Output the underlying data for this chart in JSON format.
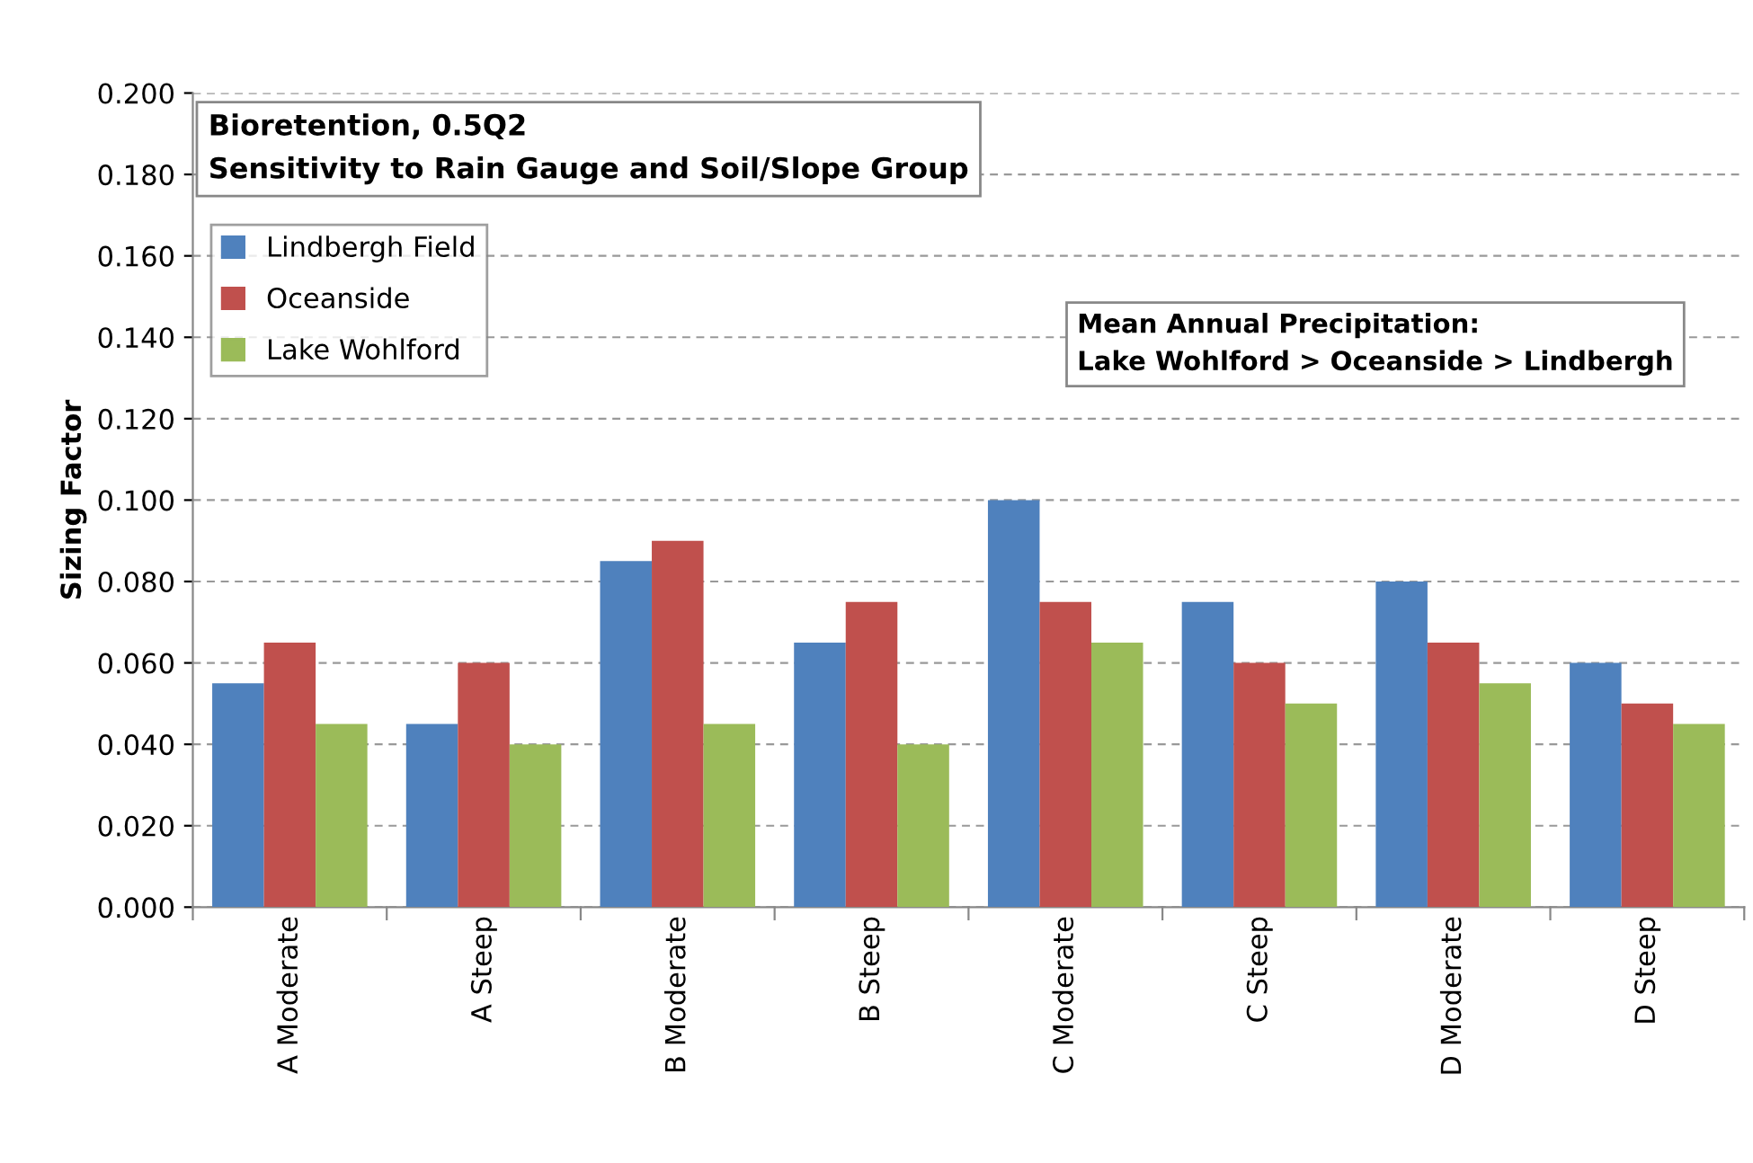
{
  "chart_data": {
    "type": "bar",
    "title": "Bioretention, 0.5Q2",
    "subtitle": "Sensitivity to Rain Gauge and Soil/Slope Group",
    "ylabel": "Sizing Factor",
    "categories": [
      "A Moderate",
      "A Steep",
      "B Moderate",
      "B Steep",
      "C Moderate",
      "C Steep",
      "D Moderate",
      "D Steep"
    ],
    "series": [
      {
        "name": "Lindbergh Field",
        "color": "#4f81bd",
        "values": [
          0.055,
          0.045,
          0.085,
          0.065,
          0.1,
          0.075,
          0.08,
          0.06
        ]
      },
      {
        "name": "Oceanside",
        "color": "#c0504d",
        "values": [
          0.065,
          0.06,
          0.09,
          0.075,
          0.075,
          0.06,
          0.065,
          0.05
        ]
      },
      {
        "name": "Lake Wohlford",
        "color": "#9bbb59",
        "values": [
          0.045,
          0.04,
          0.045,
          0.04,
          0.065,
          0.05,
          0.055,
          0.045
        ]
      }
    ],
    "ylim": [
      0,
      0.2
    ],
    "yticks": [
      {
        "value": 0,
        "label": "0.000"
      },
      {
        "value": 0.02,
        "label": "0.020"
      },
      {
        "value": 0.04,
        "label": "0.040"
      },
      {
        "value": 0.06,
        "label": "0.060"
      },
      {
        "value": 0.08,
        "label": "0.080"
      },
      {
        "value": 0.1,
        "label": "0.100"
      },
      {
        "value": 0.12,
        "label": "0.120"
      },
      {
        "value": 0.14,
        "label": "0.140"
      },
      {
        "value": 0.16,
        "label": "0.160"
      },
      {
        "value": 0.18,
        "label": "0.180"
      },
      {
        "value": 0.2,
        "label": "0.200"
      }
    ],
    "grid": "y",
    "legend": "top left",
    "annotations": [
      "Mean Annual Precipitation:\nLake Wohlford > Oceanside > Lindbergh"
    ]
  }
}
